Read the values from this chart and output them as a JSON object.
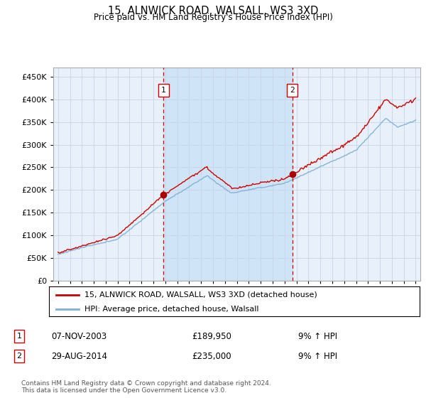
{
  "title": "15, ALNWICK ROAD, WALSALL, WS3 3XD",
  "subtitle": "Price paid vs. HM Land Registry's House Price Index (HPI)",
  "legend_line1": "15, ALNWICK ROAD, WALSALL, WS3 3XD (detached house)",
  "legend_line2": "HPI: Average price, detached house, Walsall",
  "footer": "Contains HM Land Registry data © Crown copyright and database right 2024.\nThis data is licensed under the Open Government Licence v3.0.",
  "sale1_date": "07-NOV-2003",
  "sale1_price": "£189,950",
  "sale1_hpi": "9% ↑ HPI",
  "sale1_x": 2003.85,
  "sale1_y": 189950,
  "sale2_date": "29-AUG-2014",
  "sale2_price": "£235,000",
  "sale2_hpi": "9% ↑ HPI",
  "sale2_x": 2014.65,
  "sale2_y": 235000,
  "ylim": [
    0,
    470000
  ],
  "xlim": [
    1994.6,
    2025.4
  ],
  "yticks": [
    0,
    50000,
    100000,
    150000,
    200000,
    250000,
    300000,
    350000,
    400000,
    450000
  ],
  "background_color": "#ffffff",
  "plot_bg_color": "#e8f0fa",
  "shaded_region_color": "#d0e4f7",
  "grid_color": "#c8d4e8",
  "hpi_line_color": "#7bafd4",
  "price_line_color": "#cc0000",
  "sale_marker_color": "#aa0000",
  "dashed_line_color": "#cc0000",
  "box_marker_color": "#cc0000"
}
